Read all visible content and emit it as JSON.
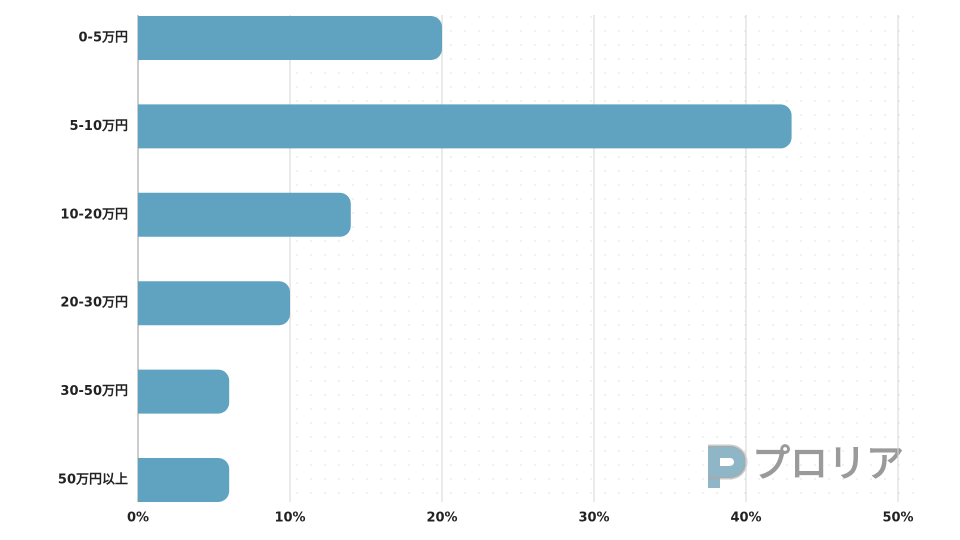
{
  "chart_data": {
    "type": "bar",
    "orientation": "horizontal",
    "categories": [
      "0-5万円",
      "5-10万円",
      "10-20万円",
      "20-30万円",
      "30-50万円",
      "50万円以上"
    ],
    "values": [
      20,
      43,
      14,
      10,
      6,
      6
    ],
    "color": "#5fa3c1",
    "xlim": [
      0,
      50
    ],
    "xticks": [
      {
        "value": 0,
        "label": "0%"
      },
      {
        "value": 10,
        "label": "10%"
      },
      {
        "value": 20,
        "label": "20%"
      },
      {
        "value": 30,
        "label": "30%"
      },
      {
        "value": 40,
        "label": "40%"
      },
      {
        "value": 50,
        "label": "50%"
      }
    ],
    "grid": true,
    "watermark": "プロリア"
  }
}
